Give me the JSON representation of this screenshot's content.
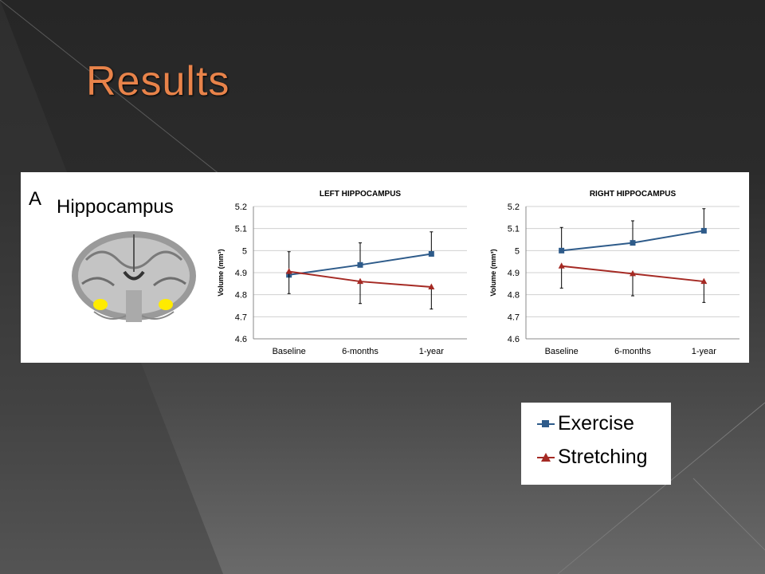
{
  "slide": {
    "title": "Results",
    "panel_letter": "A",
    "panel_heading": "Hippocampus",
    "title_color": "#e8834a"
  },
  "legend": {
    "items": [
      {
        "label": "Exercise",
        "color": "#2e5b8a",
        "marker": "square"
      },
      {
        "label": "Stretching",
        "color": "#a52a24",
        "marker": "triangle"
      }
    ]
  },
  "chart_data": [
    {
      "type": "line",
      "title": "LEFT HIPPOCAMPUS",
      "ylabel": "Volume (mm³)",
      "ylim": [
        4.6,
        5.2
      ],
      "yticks": [
        "4.6",
        "4.7",
        "4.8",
        "4.9",
        "5",
        "5.1",
        "5.2"
      ],
      "categories": [
        "Baseline",
        "6-months",
        "1-year"
      ],
      "series": [
        {
          "name": "Exercise",
          "color": "#2e5b8a",
          "marker": "square",
          "values": [
            4.89,
            4.935,
            4.985
          ],
          "err": [
            0.105,
            0.1,
            0.1
          ],
          "err_dir": "up"
        },
        {
          "name": "Stretching",
          "color": "#a52a24",
          "marker": "triangle",
          "values": [
            4.905,
            4.86,
            4.835
          ],
          "err": [
            0.1,
            0.1,
            0.1
          ],
          "err_dir": "down"
        }
      ]
    },
    {
      "type": "line",
      "title": "RIGHT HIPPOCAMPUS",
      "ylabel": "Volume (mm³)",
      "ylim": [
        4.6,
        5.2
      ],
      "yticks": [
        "4.6",
        "4.7",
        "4.8",
        "4.9",
        "5",
        "5.1",
        "5.2"
      ],
      "categories": [
        "Baseline",
        "6-months",
        "1-year"
      ],
      "series": [
        {
          "name": "Exercise",
          "color": "#2e5b8a",
          "marker": "square",
          "values": [
            5.0,
            5.035,
            5.09
          ],
          "err": [
            0.105,
            0.1,
            0.1
          ],
          "err_dir": "up"
        },
        {
          "name": "Stretching",
          "color": "#a52a24",
          "marker": "triangle",
          "values": [
            4.93,
            4.895,
            4.86
          ],
          "err": [
            0.1,
            0.1,
            0.095
          ],
          "err_dir": "down"
        }
      ]
    }
  ]
}
